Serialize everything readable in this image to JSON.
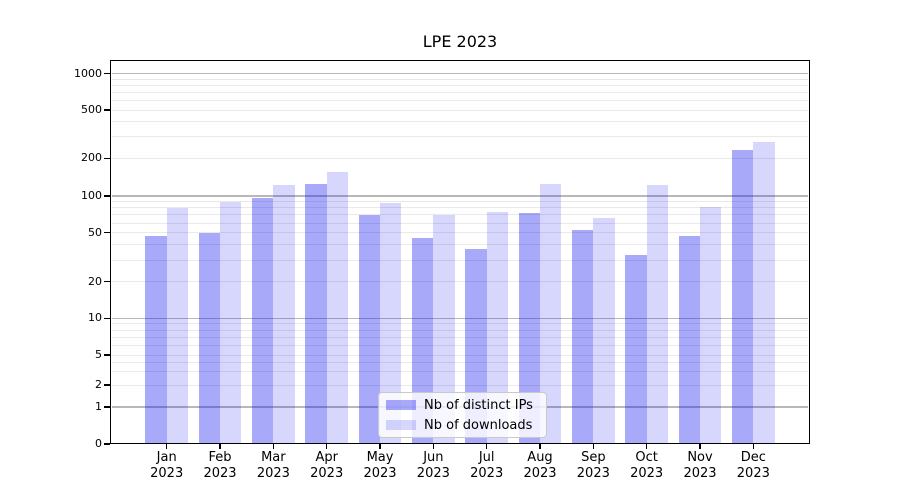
{
  "title": "LPE 2023",
  "legend": {
    "items": [
      {
        "label": "Nb of distinct IPs",
        "color": "rgba(8,8,240,0.35)"
      },
      {
        "label": "Nb of downloads",
        "color": "rgba(8,8,240,0.16)"
      }
    ]
  },
  "axes": {
    "y_tick_labels": [
      "0",
      "1",
      "2",
      "5",
      "10",
      "20",
      "50",
      "100",
      "200",
      "500",
      "1000"
    ],
    "x_tick_line2": "2023"
  },
  "colors": {
    "bar_distinct_ips": "rgba(8,8,240,0.35)",
    "bar_downloads": "rgba(8,8,240,0.16)",
    "grid_major": "#b8b8b8",
    "grid_minor": "#e9e9e9",
    "axis": "#000000",
    "background": "#ffffff"
  },
  "chart_data": {
    "type": "bar",
    "title": "LPE 2023",
    "categories": [
      "Jan 2023",
      "Feb 2023",
      "Mar 2023",
      "Apr 2023",
      "May 2023",
      "Jun 2023",
      "Jul 2023",
      "Aug 2023",
      "Sep 2023",
      "Oct 2023",
      "Nov 2023",
      "Dec 2023"
    ],
    "series": [
      {
        "name": "Nb of distinct IPs",
        "values": [
          47,
          50,
          96,
          125,
          70,
          45,
          37,
          72,
          53,
          33,
          47,
          233
        ]
      },
      {
        "name": "Nb of downloads",
        "values": [
          80,
          89,
          122,
          155,
          87,
          70,
          74,
          125,
          66,
          122,
          82,
          274
        ]
      }
    ],
    "xlabel": "",
    "ylabel": "",
    "yscale": "symlog",
    "yticks": [
      0,
      1,
      2,
      5,
      10,
      20,
      50,
      100,
      200,
      500,
      1000
    ],
    "ylim": [
      0,
      1300
    ],
    "grid": "both",
    "legend_position": "lower center"
  }
}
